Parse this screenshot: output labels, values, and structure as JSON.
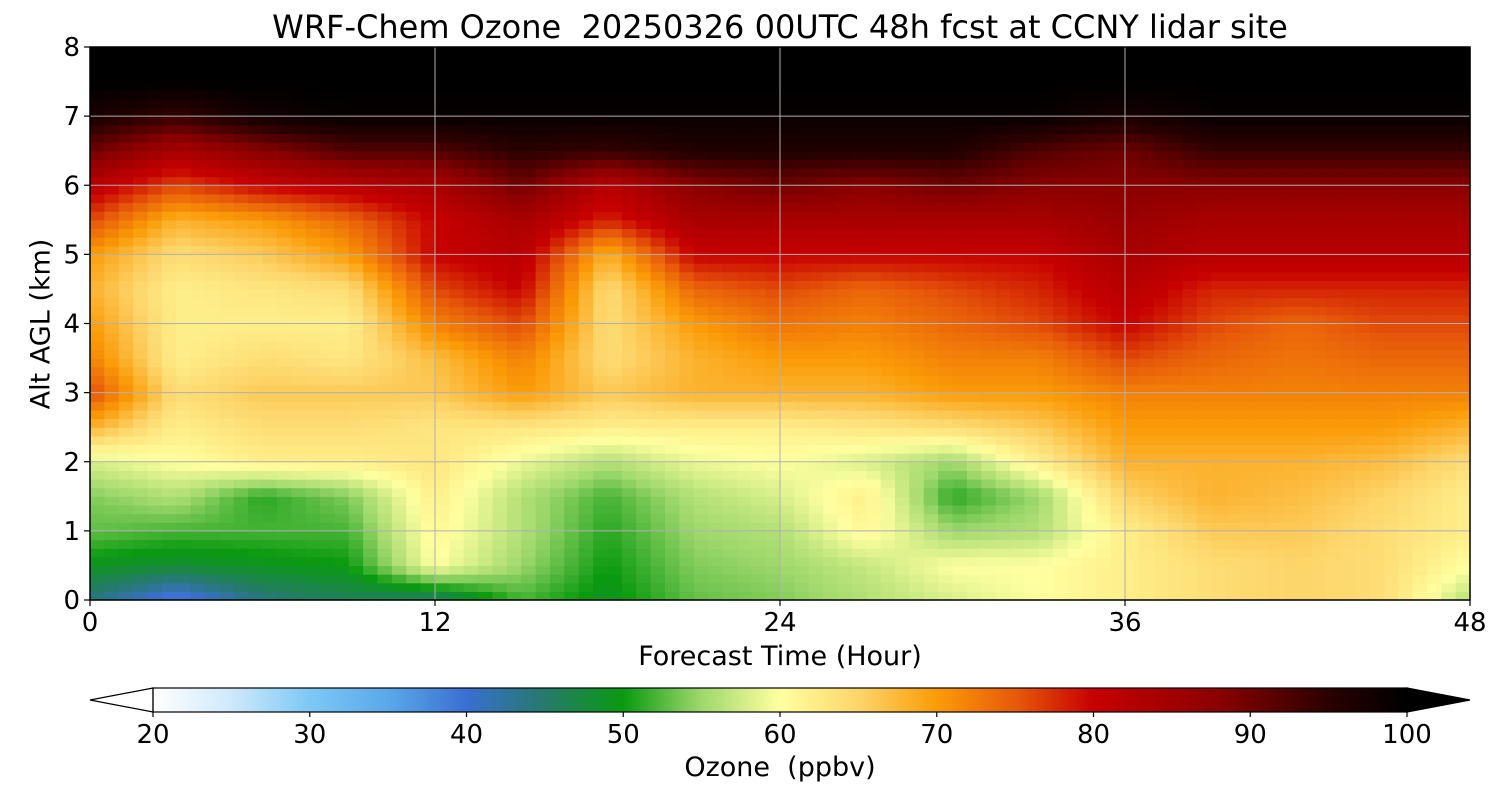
{
  "chart_data": {
    "type": "heatmap",
    "title": "WRF-Chem Ozone  20250326 00UTC 48h fcst at CCNY lidar site",
    "xlabel": "Forecast Time (Hour)",
    "ylabel": "Alt AGL (km)",
    "xlim": [
      0,
      48
    ],
    "ylim": [
      0,
      8
    ],
    "x_ticks": [
      "0",
      "12",
      "24",
      "36",
      "48"
    ],
    "y_ticks": [
      "0",
      "1",
      "2",
      "3",
      "4",
      "5",
      "6",
      "7",
      "8"
    ],
    "grid": true,
    "colorbar": {
      "label": "Ozone  (ppbv)",
      "min": 20,
      "max": 100,
      "ticks": [
        "20",
        "30",
        "40",
        "50",
        "60",
        "70",
        "80",
        "90",
        "100"
      ],
      "extend": "both",
      "colors": [
        {
          "v": 20,
          "c": "#ffffff"
        },
        {
          "v": 25,
          "c": "#cfe9fb"
        },
        {
          "v": 30,
          "c": "#7cc8f5"
        },
        {
          "v": 35,
          "c": "#5aa8ea"
        },
        {
          "v": 40,
          "c": "#3a6fd0"
        },
        {
          "v": 45,
          "c": "#257a6a"
        },
        {
          "v": 50,
          "c": "#0a9a10"
        },
        {
          "v": 55,
          "c": "#9fd86c"
        },
        {
          "v": 60,
          "c": "#ffffa0"
        },
        {
          "v": 65,
          "c": "#fdd56a"
        },
        {
          "v": 70,
          "c": "#fb9b07"
        },
        {
          "v": 75,
          "c": "#e75a0a"
        },
        {
          "v": 80,
          "c": "#c70000"
        },
        {
          "v": 88,
          "c": "#8a0000"
        },
        {
          "v": 95,
          "c": "#2a0000"
        },
        {
          "v": 100,
          "c": "#000000"
        }
      ]
    },
    "x_hours": [
      0,
      3,
      6,
      9,
      12,
      15,
      18,
      21,
      24,
      27,
      30,
      33,
      36,
      39,
      42,
      45,
      48
    ],
    "z_km": [
      0,
      0.5,
      1,
      1.5,
      2,
      2.5,
      3,
      3.5,
      4,
      4.5,
      5,
      5.5,
      6,
      6.5,
      7,
      7.5,
      8
    ],
    "ozone_ppbv": [
      [
        44,
        38,
        44,
        46,
        45,
        52,
        49,
        53,
        54,
        56,
        58,
        60,
        62,
        64,
        65,
        64,
        56
      ],
      [
        49,
        48,
        49,
        50,
        60,
        55,
        50,
        54,
        55,
        57,
        60,
        60,
        62,
        64,
        65,
        64,
        60
      ],
      [
        53,
        52,
        52,
        52,
        61,
        56,
        51,
        55,
        56,
        61,
        55,
        56,
        62,
        66,
        66,
        64,
        62
      ],
      [
        54,
        56,
        51,
        54,
        62,
        56,
        52,
        56,
        58,
        62,
        51,
        55,
        65,
        68,
        67,
        65,
        62
      ],
      [
        58,
        60,
        62,
        62,
        63,
        59,
        56,
        59,
        60,
        58,
        55,
        62,
        68,
        68,
        68,
        67,
        64
      ],
      [
        68,
        62,
        64,
        64,
        63,
        63,
        62,
        62,
        62,
        63,
        64,
        66,
        70,
        70,
        70,
        70,
        68
      ],
      [
        76,
        64,
        66,
        66,
        66,
        70,
        66,
        68,
        68,
        68,
        70,
        70,
        72,
        72,
        72,
        72,
        72
      ],
      [
        72,
        62,
        64,
        63,
        67,
        72,
        64,
        68,
        70,
        70,
        72,
        72,
        76,
        74,
        73,
        74,
        74
      ],
      [
        70,
        62,
        62,
        62,
        72,
        76,
        64,
        70,
        73,
        72,
        74,
        76,
        80,
        76,
        74,
        76,
        76
      ],
      [
        68,
        62,
        63,
        64,
        76,
        80,
        64,
        74,
        76,
        74,
        76,
        78,
        82,
        78,
        78,
        78,
        78
      ],
      [
        70,
        64,
        66,
        70,
        80,
        82,
        68,
        80,
        80,
        80,
        80,
        80,
        84,
        82,
        82,
        82,
        82
      ],
      [
        76,
        68,
        70,
        74,
        80,
        84,
        78,
        84,
        84,
        84,
        84,
        84,
        86,
        84,
        84,
        84,
        84
      ],
      [
        82,
        76,
        80,
        82,
        84,
        90,
        82,
        88,
        90,
        88,
        90,
        88,
        88,
        88,
        88,
        88,
        88
      ],
      [
        90,
        84,
        88,
        92,
        92,
        95,
        94,
        96,
        96,
        96,
        96,
        92,
        90,
        94,
        94,
        94,
        94
      ],
      [
        97,
        94,
        98,
        99,
        99,
        99,
        99,
        99,
        99,
        99,
        99,
        99,
        97,
        99,
        99,
        99,
        99
      ],
      [
        100,
        100,
        100,
        100,
        100,
        100,
        100,
        100,
        100,
        100,
        100,
        100,
        100,
        100,
        100,
        100,
        100
      ],
      [
        100,
        100,
        100,
        100,
        100,
        100,
        100,
        100,
        100,
        100,
        100,
        100,
        100,
        100,
        100,
        100,
        100
      ]
    ]
  }
}
